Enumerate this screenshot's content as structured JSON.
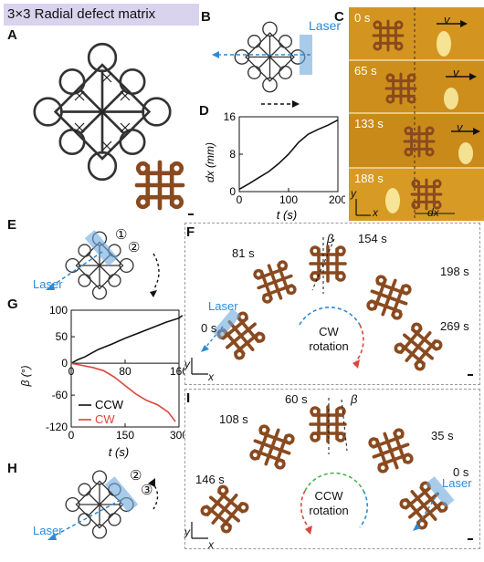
{
  "title": "3×3 Radial defect matrix",
  "panels": {
    "A": "A",
    "B": "B",
    "C": "C",
    "D": "D",
    "E": "E",
    "F": "F",
    "G": "G",
    "H": "H",
    "I": "I"
  },
  "panel_b": {
    "laser": "Laser"
  },
  "panel_c": {
    "frames": [
      {
        "time": "0 s"
      },
      {
        "time": "65 s"
      },
      {
        "time": "133 s"
      },
      {
        "time": "188 s"
      }
    ],
    "velocity": "v",
    "axis_y": "y",
    "axis_x": "x",
    "dx_label": "dx"
  },
  "panel_e": {
    "laser": "Laser",
    "marker1": "①",
    "marker2": "②"
  },
  "panel_h": {
    "laser": "Laser",
    "marker2": "②",
    "marker3": "③"
  },
  "panel_f": {
    "times": [
      "81 s",
      "154 s",
      "198 s",
      "0 s",
      "269 s"
    ],
    "laser": "Laser",
    "beta": "β",
    "center_line1": "CW",
    "center_line2": "rotation",
    "axis_y": "y",
    "axis_x": "x"
  },
  "panel_i": {
    "times": [
      "60 s",
      "108 s",
      "35 s",
      "146 s",
      "0 s"
    ],
    "laser": "Laser",
    "beta": "β",
    "center_line1": "CCW",
    "center_line2": "rotation",
    "axis_y": "y",
    "axis_x": "x"
  },
  "chart_data": [
    {
      "panel": "D",
      "type": "line",
      "xlabel": "t (s)",
      "ylabel": "dx (mm)",
      "xlim": [
        0,
        200
      ],
      "ylim": [
        0,
        16
      ],
      "xticks": [
        0,
        100,
        200
      ],
      "yticks": [
        0,
        8,
        16
      ],
      "x": [
        0,
        20,
        40,
        60,
        80,
        100,
        120,
        140,
        160,
        180,
        200
      ],
      "y": [
        0.5,
        1.7,
        3.0,
        4.3,
        6.0,
        8.0,
        10.5,
        12.3,
        13.3,
        14.2,
        15.3
      ]
    },
    {
      "panel": "G",
      "type": "line",
      "xlabel": "t (s)",
      "ylabel": "β (°)",
      "top_axis": {
        "xlim": [
          0,
          160
        ],
        "ticks": [
          0,
          80,
          160
        ]
      },
      "bottom_axis": {
        "xlim": [
          0,
          300
        ],
        "ticks": [
          0,
          150,
          300
        ]
      },
      "ylim": [
        -120,
        100
      ],
      "yticks": [
        100,
        50,
        0,
        -60,
        -120
      ],
      "legend_placement": "bottom-left",
      "series": [
        {
          "name": "CCW",
          "color": "#111111",
          "axis": "top",
          "x": [
            0,
            10,
            20,
            40,
            60,
            80,
            100,
            120,
            140,
            160,
            165
          ],
          "y": [
            0,
            7,
            12,
            26,
            36,
            47,
            57,
            67,
            77,
            85,
            90
          ]
        },
        {
          "name": "CW",
          "color": "#d9463b",
          "axis": "bottom",
          "x": [
            0,
            30,
            60,
            90,
            120,
            150,
            180,
            210,
            240,
            270,
            290
          ],
          "y": [
            0,
            -4,
            -8,
            -14,
            -26,
            -42,
            -58,
            -70,
            -78,
            -92,
            -110
          ]
        }
      ]
    }
  ]
}
